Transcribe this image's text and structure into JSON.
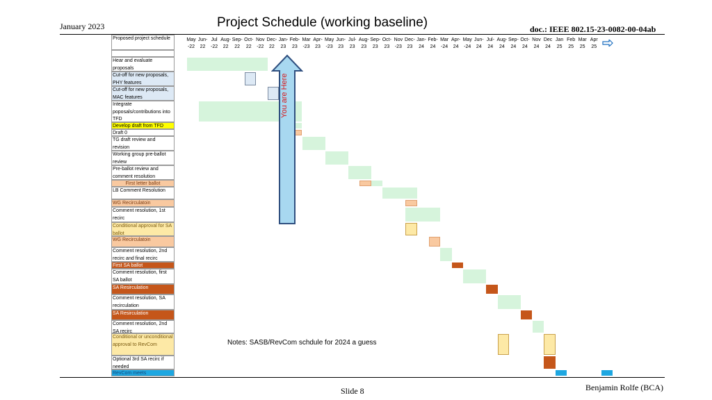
{
  "header": {
    "date": "January 2023",
    "title": "Project Schedule (working baseline)",
    "doc": "doc.: IEEE 802.15-23-0082-00-04ab"
  },
  "footer": {
    "author": "Benjamin Rolfe (BCA)",
    "slide": "Slide 8"
  },
  "notes": "Notes:  SASB/RevCom schdule for 2024 a guess",
  "arrow_label": "You are Here",
  "colors": {
    "light_green": "#d6f4dc",
    "light_blue": "#dde9f5",
    "peach": "#f9c9a0",
    "light_yellow": "#fde9a6",
    "dark_orange": "#c5561a",
    "cyan": "#1ea7e1",
    "yellow_highlight": "#ffff00",
    "peach_cell": "#f9c9a0",
    "orange_cell": "#c5561a",
    "yellow_cell": "#fde9a6",
    "cyan_cell": "#1ea7e1",
    "arrow_fill": "#a8d8f0",
    "arrow_stroke": "#2f4f7f"
  },
  "months": [
    {
      "m": "May",
      "y": "-22"
    },
    {
      "m": "Jun-",
      "y": "22"
    },
    {
      "m": "Jul",
      "y": "-22"
    },
    {
      "m": "Aug-",
      "y": "22"
    },
    {
      "m": "Sep-",
      "y": "22"
    },
    {
      "m": "Oct-",
      "y": "22"
    },
    {
      "m": "Nov",
      "y": "-22"
    },
    {
      "m": "Dec-",
      "y": "22"
    },
    {
      "m": "Jan-",
      "y": "23"
    },
    {
      "m": "Feb-",
      "y": "23"
    },
    {
      "m": "Mar",
      "y": "-23"
    },
    {
      "m": "Apr-",
      "y": "23"
    },
    {
      "m": "May",
      "y": "-23"
    },
    {
      "m": "Jun-",
      "y": "23"
    },
    {
      "m": "Jul-",
      "y": "23"
    },
    {
      "m": "Aug-",
      "y": "23"
    },
    {
      "m": "Sep-",
      "y": "23"
    },
    {
      "m": "Oct-",
      "y": "23"
    },
    {
      "m": "Nov",
      "y": "-23"
    },
    {
      "m": "Dec-",
      "y": "23"
    },
    {
      "m": "Jan-",
      "y": "24"
    },
    {
      "m": "Feb-",
      "y": "24"
    },
    {
      "m": "Mar",
      "y": "-24"
    },
    {
      "m": "Apr-",
      "y": "24"
    },
    {
      "m": "May",
      "y": "-24"
    },
    {
      "m": "Jun-",
      "y": "24"
    },
    {
      "m": "Jul-",
      "y": "24"
    },
    {
      "m": "Aug-",
      "y": "24"
    },
    {
      "m": "Sep-",
      "y": "24"
    },
    {
      "m": "Oct-",
      "y": "24"
    },
    {
      "m": "Nov",
      "y": "24"
    },
    {
      "m": "Dec",
      "y": "24"
    },
    {
      "m": "Jan",
      "y": "25"
    },
    {
      "m": "Feb",
      "y": "25"
    },
    {
      "m": "Mar",
      "y": "25"
    },
    {
      "m": "Apr",
      "y": "25"
    }
  ],
  "tasks": [
    {
      "label": "Proposed project schedule",
      "style": "plain"
    },
    {
      "label": "",
      "style": "plain"
    },
    {
      "label": "Hear and evaluate proposals",
      "style": "plain"
    },
    {
      "label": "Cut-off for new proposals, PHY features",
      "style": "blue"
    },
    {
      "label": "Cut-off for new proposals, MAC features",
      "style": "blue"
    },
    {
      "label": "Integrate poposals/contributions into TFD",
      "style": "plain"
    },
    {
      "label": "Develop draft from TFD",
      "style": "yellow"
    },
    {
      "label": "Draft 0",
      "style": "plain"
    },
    {
      "label": "TG draft review and revision",
      "style": "plain"
    },
    {
      "label": "Working group pre-ballot review",
      "style": "plain"
    },
    {
      "label": "Pre-ballot review and comment resolution",
      "style": "plain"
    },
    {
      "label": "First letter ballot",
      "style": "peach_center"
    },
    {
      "label": "LB Comment Resolution",
      "style": "plain"
    },
    {
      "label": "WG Recirculatoin",
      "style": "peach"
    },
    {
      "label": "Comment resolution, 1st recirc",
      "style": "plain"
    },
    {
      "label": "Conditional approval for SA ballot",
      "style": "lightyellow"
    },
    {
      "label": "WG Recirculatoin",
      "style": "peach"
    },
    {
      "label": "Comment resolution, 2nd recirc and final recirc",
      "style": "plain"
    },
    {
      "label": "First SA ballot",
      "style": "orange"
    },
    {
      "label": "Comment resolution, first SA ballot",
      "style": "plain"
    },
    {
      "label": "SA Resirculation",
      "style": "orange"
    },
    {
      "label": "Comment resolution, SA recirculation",
      "style": "plain"
    },
    {
      "label": "SA Resirculation",
      "style": "orange"
    },
    {
      "label": "Comment resolution, 2nd SA recirc",
      "style": "plain"
    },
    {
      "label": "Conditional or unconditional approval to RevCom",
      "style": "lightyellow"
    },
    {
      "label": "Optional 3rd SA recirc if needed",
      "style": "plain"
    },
    {
      "label": "RevCom meets",
      "style": "cyan"
    }
  ],
  "bars": [
    {
      "task": 2,
      "start": 0,
      "end": 7,
      "color": "light_green"
    },
    {
      "task": 3,
      "start": 5,
      "end": 6,
      "color": "light_blue"
    },
    {
      "task": 4,
      "start": 7,
      "end": 8,
      "color": "light_blue"
    },
    {
      "task": 5,
      "start": 1,
      "end": 10,
      "color": "light_green"
    },
    {
      "task": 6,
      "start": 8,
      "end": 10,
      "color": "light_green"
    },
    {
      "task": 7,
      "start": 9,
      "end": 10,
      "color": "peach"
    },
    {
      "task": 8,
      "start": 10,
      "end": 12,
      "color": "light_green"
    },
    {
      "task": 9,
      "start": 12,
      "end": 14,
      "color": "light_green"
    },
    {
      "task": 10,
      "start": 14,
      "end": 16,
      "color": "light_green"
    },
    {
      "task": 11,
      "start": 15,
      "end": 16,
      "color": "peach"
    },
    {
      "task": 11,
      "start": 16,
      "end": 17,
      "color": "light_green"
    },
    {
      "task": 12,
      "start": 17,
      "end": 20,
      "color": "light_green"
    },
    {
      "task": 13,
      "start": 19,
      "end": 20,
      "color": "peach"
    },
    {
      "task": 14,
      "start": 19,
      "end": 22,
      "color": "light_green"
    },
    {
      "task": 15,
      "start": 19,
      "end": 20,
      "color": "light_yellow"
    },
    {
      "task": 16,
      "start": 21,
      "end": 22,
      "color": "peach"
    },
    {
      "task": 17,
      "start": 22,
      "end": 23,
      "color": "light_green"
    },
    {
      "task": 18,
      "start": 23,
      "end": 24,
      "color": "dark_orange"
    },
    {
      "task": 19,
      "start": 24,
      "end": 26,
      "color": "light_green"
    },
    {
      "task": 20,
      "start": 26,
      "end": 27,
      "color": "dark_orange"
    },
    {
      "task": 21,
      "start": 27,
      "end": 29,
      "color": "light_green"
    },
    {
      "task": 22,
      "start": 29,
      "end": 30,
      "color": "dark_orange"
    },
    {
      "task": 23,
      "start": 30,
      "end": 31,
      "color": "light_green"
    },
    {
      "task": 24,
      "start": 27,
      "end": 28,
      "color": "light_yellow"
    },
    {
      "task": 24,
      "start": 31,
      "end": 32,
      "color": "light_yellow"
    },
    {
      "task": 25,
      "start": 31,
      "end": 32,
      "color": "dark_orange"
    },
    {
      "task": 26,
      "start": 32,
      "end": 33,
      "color": "cyan"
    },
    {
      "task": 26,
      "start": 36,
      "end": 37,
      "color": "cyan"
    }
  ]
}
